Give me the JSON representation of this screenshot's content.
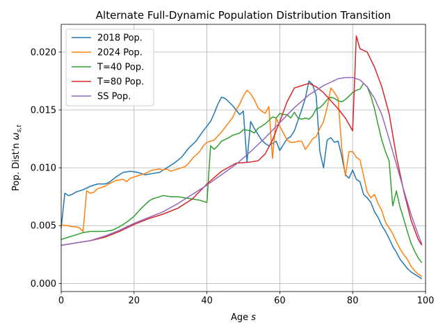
{
  "chart_data": {
    "type": "line",
    "title": "Alternate Full-Dynamic Population Distribution Transition",
    "xlabel": "Age s",
    "ylabel": "Pop. Dist'n ω s,t",
    "xlim": [
      0,
      100
    ],
    "ylim": [
      -0.0007,
      0.0224
    ],
    "xticks": [
      0,
      20,
      40,
      60,
      80,
      100
    ],
    "yticks": [
      0.0,
      0.005,
      0.01,
      0.015,
      0.02
    ],
    "xtick_labels": [
      "0",
      "20",
      "40",
      "60",
      "80",
      "100"
    ],
    "ytick_labels": [
      "0.000",
      "0.005",
      "0.010",
      "0.015",
      "0.020"
    ],
    "grid": true,
    "legend_position": "top-left",
    "series": [
      {
        "name": "2018 Pop.",
        "color": "#1f77b4",
        "points": [
          [
            0,
            0.0048
          ],
          [
            1,
            0.0078
          ],
          [
            2,
            0.0076
          ],
          [
            3,
            0.0077
          ],
          [
            4,
            0.0079
          ],
          [
            6,
            0.0081
          ],
          [
            8,
            0.0084
          ],
          [
            10,
            0.0086
          ],
          [
            12,
            0.0086
          ],
          [
            13,
            0.0087
          ],
          [
            15,
            0.0092
          ],
          [
            17,
            0.0096
          ],
          [
            19,
            0.0097
          ],
          [
            21,
            0.0096
          ],
          [
            23,
            0.0094
          ],
          [
            25,
            0.0095
          ],
          [
            27,
            0.0096
          ],
          [
            29,
            0.01
          ],
          [
            31,
            0.0104
          ],
          [
            33,
            0.0109
          ],
          [
            35,
            0.0117
          ],
          [
            37,
            0.0123
          ],
          [
            39,
            0.0132
          ],
          [
            41,
            0.014
          ],
          [
            42,
            0.0147
          ],
          [
            43,
            0.0155
          ],
          [
            44,
            0.0161
          ],
          [
            45,
            0.016
          ],
          [
            47,
            0.0154
          ],
          [
            48,
            0.015
          ],
          [
            49,
            0.0146
          ],
          [
            50,
            0.0149
          ],
          [
            51,
            0.0105
          ],
          [
            52,
            0.014
          ],
          [
            53,
            0.0134
          ],
          [
            55,
            0.0124
          ],
          [
            56,
            0.0121
          ],
          [
            57,
            0.0119
          ],
          [
            58,
            0.0121
          ],
          [
            59,
            0.0123
          ],
          [
            60,
            0.0115
          ],
          [
            61,
            0.012
          ],
          [
            62,
            0.0125
          ],
          [
            63,
            0.0127
          ],
          [
            64,
            0.0132
          ],
          [
            65,
            0.0141
          ],
          [
            66,
            0.015
          ],
          [
            67,
            0.016
          ],
          [
            68,
            0.0175
          ],
          [
            69,
            0.0172
          ],
          [
            70,
            0.0162
          ],
          [
            71,
            0.0114
          ],
          [
            72,
            0.01
          ],
          [
            73,
            0.0124
          ],
          [
            74,
            0.0126
          ],
          [
            75,
            0.0122
          ],
          [
            76,
            0.0123
          ],
          [
            77,
            0.011
          ],
          [
            78,
            0.0094
          ],
          [
            79,
            0.0091
          ],
          [
            80,
            0.0098
          ],
          [
            81,
            0.009
          ],
          [
            82,
            0.0088
          ],
          [
            83,
            0.0077
          ],
          [
            84,
            0.0074
          ],
          [
            85,
            0.007
          ],
          [
            86,
            0.0062
          ],
          [
            87,
            0.0057
          ],
          [
            88,
            0.005
          ],
          [
            89,
            0.0045
          ],
          [
            90,
            0.0039
          ],
          [
            91,
            0.0032
          ],
          [
            92,
            0.0027
          ],
          [
            93,
            0.0021
          ],
          [
            94,
            0.0017
          ],
          [
            95,
            0.0013
          ],
          [
            96,
            0.001
          ],
          [
            97,
            0.0008
          ],
          [
            98,
            0.0006
          ],
          [
            99,
            0.0004
          ]
        ]
      },
      {
        "name": "2024 Pop.",
        "color": "#ff7f0e",
        "points": [
          [
            0,
            0.0051
          ],
          [
            1,
            0.005
          ],
          [
            2,
            0.005
          ],
          [
            3,
            0.0049
          ],
          [
            4,
            0.0049
          ],
          [
            5,
            0.0048
          ],
          [
            6,
            0.0045
          ],
          [
            7,
            0.008
          ],
          [
            8,
            0.0078
          ],
          [
            9,
            0.0079
          ],
          [
            10,
            0.0082
          ],
          [
            12,
            0.0084
          ],
          [
            13,
            0.0086
          ],
          [
            15,
            0.0089
          ],
          [
            17,
            0.009
          ],
          [
            18,
            0.0088
          ],
          [
            19,
            0.0091
          ],
          [
            21,
            0.0093
          ],
          [
            23,
            0.0095
          ],
          [
            25,
            0.0098
          ],
          [
            27,
            0.0099
          ],
          [
            28,
            0.0098
          ],
          [
            29,
            0.0099
          ],
          [
            30,
            0.0097
          ],
          [
            32,
            0.0099
          ],
          [
            34,
            0.0101
          ],
          [
            35,
            0.0104
          ],
          [
            36,
            0.0108
          ],
          [
            38,
            0.0114
          ],
          [
            39,
            0.0119
          ],
          [
            40,
            0.0122
          ],
          [
            42,
            0.0124
          ],
          [
            44,
            0.0131
          ],
          [
            46,
            0.0139
          ],
          [
            47,
            0.0143
          ],
          [
            48,
            0.015
          ],
          [
            49,
            0.0155
          ],
          [
            50,
            0.0162
          ],
          [
            51,
            0.0167
          ],
          [
            52,
            0.0164
          ],
          [
            53,
            0.0159
          ],
          [
            54,
            0.0152
          ],
          [
            55,
            0.0149
          ],
          [
            56,
            0.0147
          ],
          [
            57,
            0.0153
          ],
          [
            58,
            0.0108
          ],
          [
            59,
            0.0143
          ],
          [
            60,
            0.0136
          ],
          [
            61,
            0.013
          ],
          [
            62,
            0.0124
          ],
          [
            63,
            0.0122
          ],
          [
            64,
            0.0122
          ],
          [
            65,
            0.0123
          ],
          [
            66,
            0.0123
          ],
          [
            67,
            0.0116
          ],
          [
            68,
            0.012
          ],
          [
            69,
            0.0125
          ],
          [
            70,
            0.0127
          ],
          [
            71,
            0.0134
          ],
          [
            72,
            0.014
          ],
          [
            73,
            0.0152
          ],
          [
            74,
            0.0169
          ],
          [
            75,
            0.0165
          ],
          [
            76,
            0.016
          ],
          [
            77,
            0.0117
          ],
          [
            78,
            0.0093
          ],
          [
            79,
            0.0114
          ],
          [
            80,
            0.0114
          ],
          [
            81,
            0.0109
          ],
          [
            82,
            0.0107
          ],
          [
            83,
            0.0093
          ],
          [
            84,
            0.0079
          ],
          [
            85,
            0.0074
          ],
          [
            86,
            0.0077
          ],
          [
            87,
            0.0069
          ],
          [
            88,
            0.0063
          ],
          [
            89,
            0.0053
          ],
          [
            90,
            0.0048
          ],
          [
            91,
            0.0043
          ],
          [
            92,
            0.0036
          ],
          [
            93,
            0.003
          ],
          [
            94,
            0.0025
          ],
          [
            95,
            0.0021
          ],
          [
            96,
            0.0015
          ],
          [
            97,
            0.0011
          ],
          [
            98,
            0.0008
          ],
          [
            99,
            0.0006
          ]
        ]
      },
      {
        "name": "T=40 Pop.",
        "color": "#2ca02c",
        "points": [
          [
            0,
            0.0038
          ],
          [
            2,
            0.004
          ],
          [
            4,
            0.0042
          ],
          [
            6,
            0.0044
          ],
          [
            8,
            0.0045
          ],
          [
            12,
            0.0045
          ],
          [
            14,
            0.0046
          ],
          [
            16,
            0.0049
          ],
          [
            18,
            0.0053
          ],
          [
            20,
            0.0058
          ],
          [
            22,
            0.0065
          ],
          [
            24,
            0.0071
          ],
          [
            25,
            0.0073
          ],
          [
            27,
            0.0075
          ],
          [
            28,
            0.0076
          ],
          [
            30,
            0.0075
          ],
          [
            32,
            0.0075
          ],
          [
            34,
            0.0074
          ],
          [
            36,
            0.0073
          ],
          [
            38,
            0.0072
          ],
          [
            39,
            0.0071
          ],
          [
            40,
            0.007
          ],
          [
            41,
            0.0119
          ],
          [
            42,
            0.0116
          ],
          [
            43,
            0.0119
          ],
          [
            44,
            0.0123
          ],
          [
            46,
            0.0126
          ],
          [
            47,
            0.0128
          ],
          [
            49,
            0.013
          ],
          [
            50,
            0.0133
          ],
          [
            52,
            0.0132
          ],
          [
            53,
            0.013
          ],
          [
            54,
            0.0134
          ],
          [
            56,
            0.0138
          ],
          [
            58,
            0.0144
          ],
          [
            59,
            0.0143
          ],
          [
            60,
            0.0147
          ],
          [
            61,
            0.0146
          ],
          [
            62,
            0.0146
          ],
          [
            63,
            0.0143
          ],
          [
            64,
            0.0148
          ],
          [
            65,
            0.0143
          ],
          [
            66,
            0.0142
          ],
          [
            67,
            0.0143
          ],
          [
            68,
            0.0142
          ],
          [
            69,
            0.0145
          ],
          [
            70,
            0.0151
          ],
          [
            71,
            0.0152
          ],
          [
            72,
            0.0155
          ],
          [
            73,
            0.0159
          ],
          [
            74,
            0.0161
          ],
          [
            75,
            0.016
          ],
          [
            76,
            0.0158
          ],
          [
            77,
            0.0157
          ],
          [
            78,
            0.0159
          ],
          [
            79,
            0.0162
          ],
          [
            80,
            0.0165
          ],
          [
            81,
            0.0167
          ],
          [
            82,
            0.0168
          ],
          [
            83,
            0.0173
          ],
          [
            84,
            0.017
          ],
          [
            85,
            0.0162
          ],
          [
            86,
            0.0151
          ],
          [
            87,
            0.0137
          ],
          [
            88,
            0.0124
          ],
          [
            89,
            0.0114
          ],
          [
            90,
            0.0106
          ],
          [
            91,
            0.0067
          ],
          [
            92,
            0.008
          ],
          [
            93,
            0.0066
          ],
          [
            94,
            0.0056
          ],
          [
            95,
            0.0045
          ],
          [
            96,
            0.0035
          ],
          [
            97,
            0.0028
          ],
          [
            98,
            0.0022
          ],
          [
            99,
            0.0018
          ]
        ]
      },
      {
        "name": "T=80 Pop.",
        "color": "#d62728",
        "points": [
          [
            0,
            0.0033
          ],
          [
            4,
            0.0035
          ],
          [
            8,
            0.0037
          ],
          [
            12,
            0.004
          ],
          [
            16,
            0.0045
          ],
          [
            20,
            0.0051
          ],
          [
            24,
            0.0056
          ],
          [
            28,
            0.006
          ],
          [
            32,
            0.0065
          ],
          [
            36,
            0.0073
          ],
          [
            40,
            0.0086
          ],
          [
            44,
            0.0097
          ],
          [
            48,
            0.0104
          ],
          [
            52,
            0.0105
          ],
          [
            54,
            0.0106
          ],
          [
            56,
            0.0112
          ],
          [
            58,
            0.0124
          ],
          [
            60,
            0.014
          ],
          [
            62,
            0.0157
          ],
          [
            64,
            0.0169
          ],
          [
            66,
            0.0171
          ],
          [
            68,
            0.0173
          ],
          [
            70,
            0.017
          ],
          [
            72,
            0.0165
          ],
          [
            74,
            0.0158
          ],
          [
            76,
            0.0151
          ],
          [
            78,
            0.0143
          ],
          [
            80,
            0.0132
          ],
          [
            81,
            0.0214
          ],
          [
            82,
            0.0203
          ],
          [
            84,
            0.02
          ],
          [
            86,
            0.0187
          ],
          [
            88,
            0.017
          ],
          [
            90,
            0.0147
          ],
          [
            92,
            0.011
          ],
          [
            94,
            0.008
          ],
          [
            96,
            0.0055
          ],
          [
            98,
            0.0038
          ],
          [
            99,
            0.0033
          ]
        ]
      },
      {
        "name": "SS Pop.",
        "color": "#9467bd",
        "points": [
          [
            0,
            0.0033
          ],
          [
            4,
            0.0035
          ],
          [
            8,
            0.0037
          ],
          [
            12,
            0.0041
          ],
          [
            16,
            0.0046
          ],
          [
            20,
            0.0052
          ],
          [
            24,
            0.0057
          ],
          [
            28,
            0.0062
          ],
          [
            32,
            0.0069
          ],
          [
            36,
            0.0077
          ],
          [
            40,
            0.0085
          ],
          [
            44,
            0.0094
          ],
          [
            48,
            0.0103
          ],
          [
            52,
            0.0114
          ],
          [
            56,
            0.0126
          ],
          [
            60,
            0.0139
          ],
          [
            64,
            0.0152
          ],
          [
            68,
            0.0163
          ],
          [
            72,
            0.0171
          ],
          [
            76,
            0.0177
          ],
          [
            78,
            0.0178
          ],
          [
            80,
            0.0178
          ],
          [
            82,
            0.0176
          ],
          [
            84,
            0.017
          ],
          [
            86,
            0.016
          ],
          [
            88,
            0.0146
          ],
          [
            90,
            0.0125
          ],
          [
            92,
            0.0103
          ],
          [
            94,
            0.0081
          ],
          [
            96,
            0.006
          ],
          [
            98,
            0.0042
          ],
          [
            99,
            0.0034
          ]
        ]
      }
    ]
  }
}
